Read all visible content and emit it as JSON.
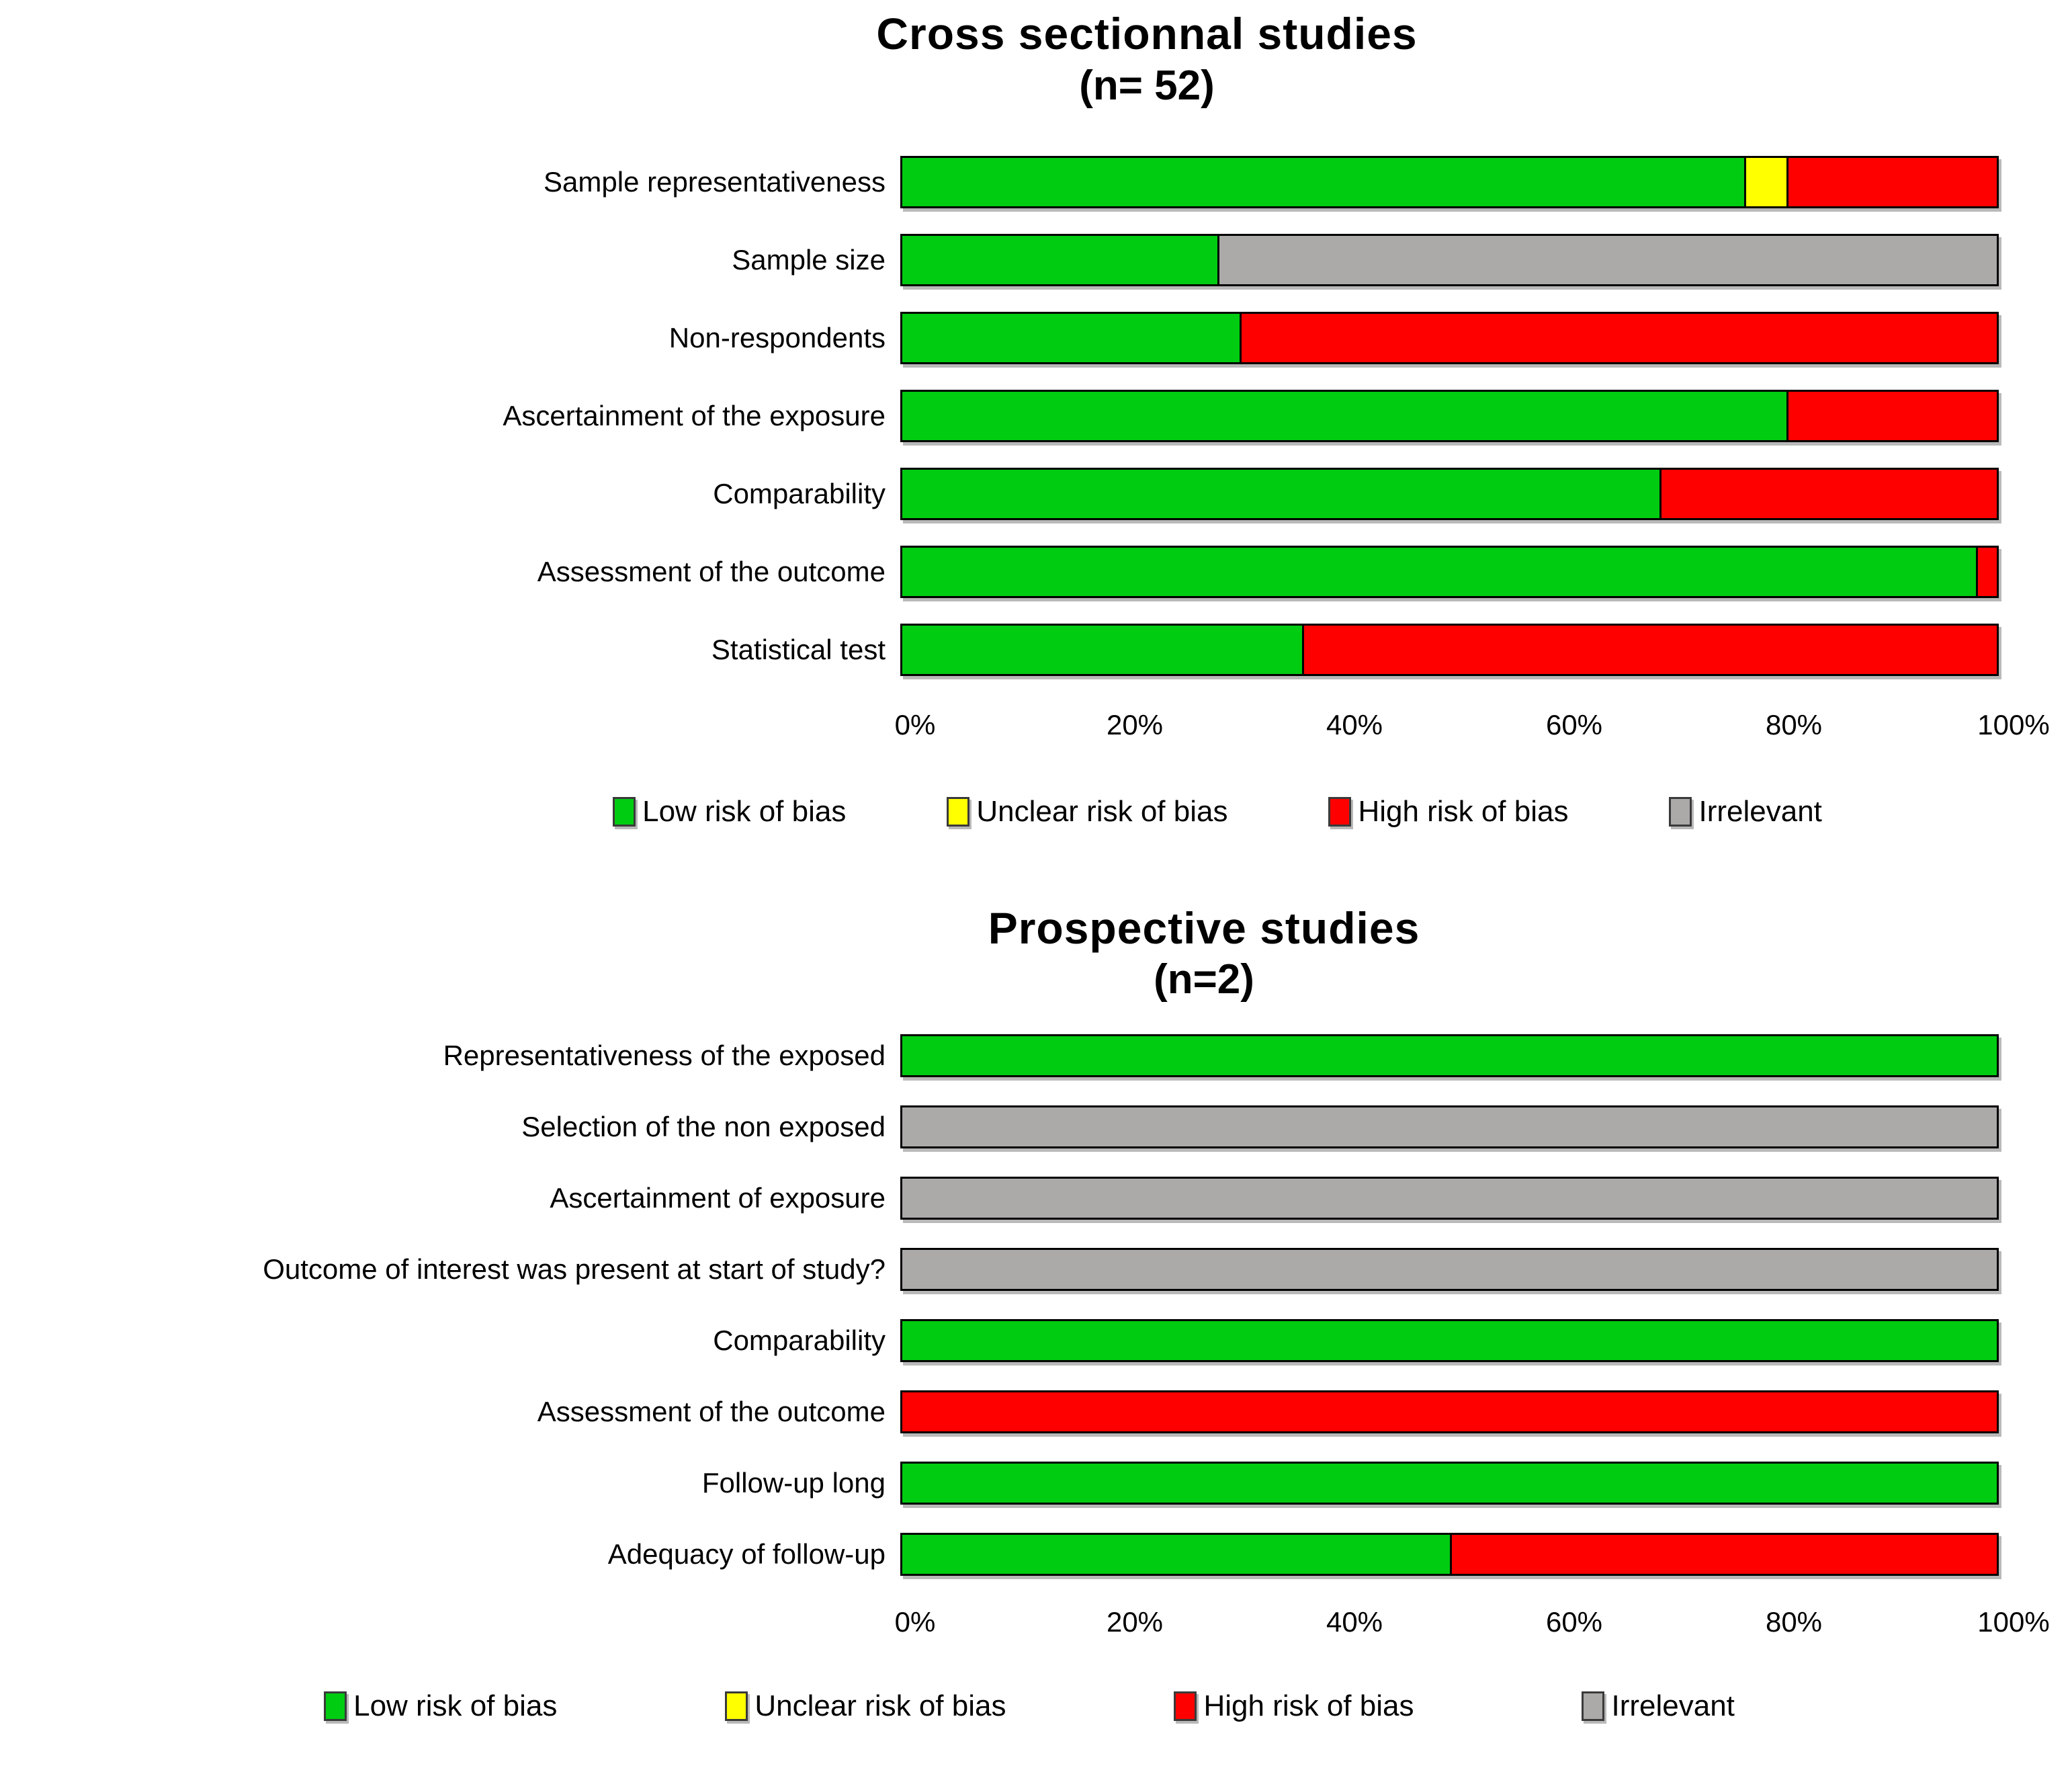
{
  "palette": {
    "low": "#00CC11",
    "unclear": "#FFFF00",
    "high": "#FF0000",
    "irrelevant": "#ACA9A9"
  },
  "legend": [
    "Low risk of bias",
    "Unclear risk of bias",
    "High risk of bias",
    "Irrelevant"
  ],
  "chart_data": [
    {
      "type": "bar",
      "stacked": true,
      "orientation": "horizontal",
      "title": "Cross sectionnal studies",
      "subtitle": "(n= 52)",
      "xlabel": "",
      "ylabel": "",
      "xlim": [
        0,
        100
      ],
      "x_ticks_percent": [
        0,
        20,
        40,
        60,
        80,
        100
      ],
      "x_tick_labels": [
        "0%",
        "20%",
        "40%",
        "60%",
        "80%",
        "100%"
      ],
      "grid": false,
      "legend_position": "bottom",
      "categories": [
        "Sample representativeness",
        "Sample size",
        "Non-respondents",
        "Ascertainment of the exposure",
        "Comparability",
        "Assessment of the outcome",
        "Statistical test"
      ],
      "series": [
        {
          "name": "Low risk of bias",
          "color_key": "low",
          "values": [
            76.9,
            28.8,
            30.8,
            80.8,
            69.2,
            98.1,
            36.5
          ]
        },
        {
          "name": "Unclear risk of bias",
          "color_key": "unclear",
          "values": [
            3.9,
            0,
            0,
            0,
            0,
            0,
            0
          ]
        },
        {
          "name": "High risk of bias",
          "color_key": "high",
          "values": [
            19.2,
            0,
            69.2,
            19.2,
            30.8,
            1.9,
            63.5
          ]
        },
        {
          "name": "Irrelevant",
          "color_key": "irrelevant",
          "values": [
            0,
            71.2,
            0,
            0,
            0,
            0,
            0
          ]
        }
      ]
    },
    {
      "type": "bar",
      "stacked": true,
      "orientation": "horizontal",
      "title": "Prospective studies",
      "subtitle": "(n=2)",
      "xlabel": "",
      "ylabel": "",
      "xlim": [
        0,
        100
      ],
      "x_ticks_percent": [
        0,
        20,
        40,
        60,
        80,
        100
      ],
      "x_tick_labels": [
        "0%",
        "20%",
        "40%",
        "60%",
        "80%",
        "100%"
      ],
      "grid": false,
      "legend_position": "bottom",
      "categories": [
        "Representativeness of the exposed",
        "Selection of the non exposed",
        "Ascertainment of exposure",
        "Outcome of interest was present at start of study?",
        "Comparability",
        "Assessment of the outcome",
        "Follow-up long",
        "Adequacy of follow-up"
      ],
      "series": [
        {
          "name": "Low risk of bias",
          "color_key": "low",
          "values": [
            100,
            0,
            0,
            0,
            100,
            0,
            100,
            50
          ]
        },
        {
          "name": "Unclear risk of bias",
          "color_key": "unclear",
          "values": [
            0,
            0,
            0,
            0,
            0,
            0,
            0,
            0
          ]
        },
        {
          "name": "High risk of bias",
          "color_key": "high",
          "values": [
            0,
            0,
            0,
            0,
            0,
            100,
            0,
            50
          ]
        },
        {
          "name": "Irrelevant",
          "color_key": "irrelevant",
          "values": [
            0,
            100,
            100,
            100,
            0,
            0,
            0,
            0
          ]
        }
      ]
    }
  ]
}
